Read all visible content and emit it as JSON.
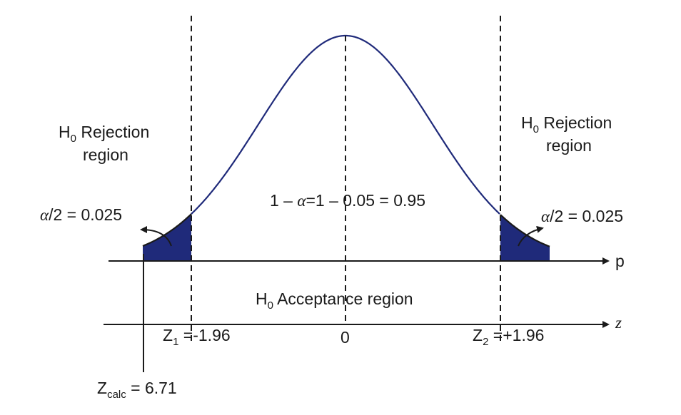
{
  "colors": {
    "curve": "#1f2a7a",
    "tail_fill": "#1f2a7a",
    "ink": "#1a1a1a"
  },
  "labels": {
    "left_rejection": {
      "h": "H",
      "sub": "0",
      "rest": " Rejection",
      "line2": "region"
    },
    "right_rejection": {
      "h": "H",
      "sub": "0",
      "rest": " Rejection",
      "line2": "region"
    },
    "left_alpha": {
      "alpha": "α",
      "rest": "/2 = 0.025"
    },
    "right_alpha": {
      "alpha": "α",
      "rest": "/2 = 0.025"
    },
    "center_eq": {
      "a": "1 – ",
      "alpha": "α",
      "b": "=1 – ",
      "c": " 0.05 = 0.95"
    },
    "acceptance": {
      "h": "H",
      "sub": "0",
      "rest": " Acceptance region"
    },
    "p_axis": "p",
    "z_axis": "z",
    "z1": {
      "z": "Z",
      "sub": "1",
      "rest": " =-1.96"
    },
    "zero": "0",
    "z2": {
      "z": "Z",
      "sub": "2",
      "rest": " =+1.96"
    },
    "zcalc": {
      "z": "Z",
      "sub": "calc",
      "rest": " = 6.71"
    }
  }
}
